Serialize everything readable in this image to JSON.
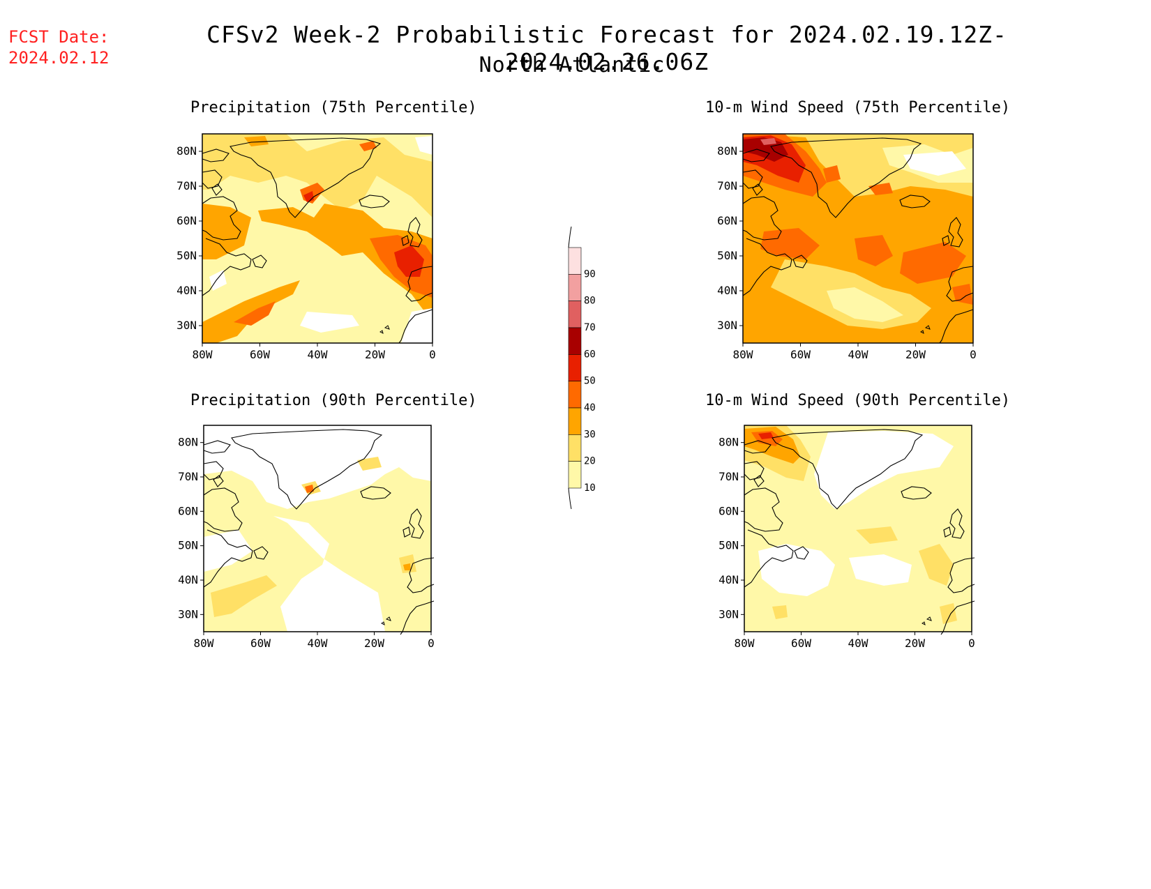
{
  "header": {
    "fcst_date_label": "FCST Date:",
    "fcst_date_value": "2024.02.12",
    "title": "CFSv2 Week-2 Probabilistic Forecast for 2024.02.19.12Z-2024.02.26.06Z",
    "subtitle": "North Atlantic"
  },
  "panels": [
    {
      "title": "Precipitation (75th Percentile)"
    },
    {
      "title": "10-m Wind Speed (75th Percentile)"
    },
    {
      "title": "Precipitation (90th Percentile)"
    },
    {
      "title": "10-m Wind Speed (90th Percentile)"
    }
  ],
  "axes": {
    "lat_labels": [
      "80N",
      "70N",
      "60N",
      "50N",
      "40N",
      "30N"
    ],
    "lat_values": [
      80,
      70,
      60,
      50,
      40,
      30
    ],
    "lon_labels": [
      "80W",
      "60W",
      "40W",
      "20W",
      "0"
    ],
    "lon_values": [
      -80,
      -60,
      -40,
      -20,
      0
    ],
    "lat_range": [
      25,
      85
    ],
    "lon_range": [
      -80,
      0
    ]
  },
  "colorbar": {
    "levels": [
      "10",
      "20",
      "30",
      "40",
      "50",
      "60",
      "70",
      "80",
      "90"
    ],
    "colors": [
      "#fff8a8",
      "#ffe066",
      "#ffa500",
      "#ff6a00",
      "#e82000",
      "#a80000",
      "#e06060",
      "#f2a0a0",
      "#fde0e0"
    ]
  }
}
